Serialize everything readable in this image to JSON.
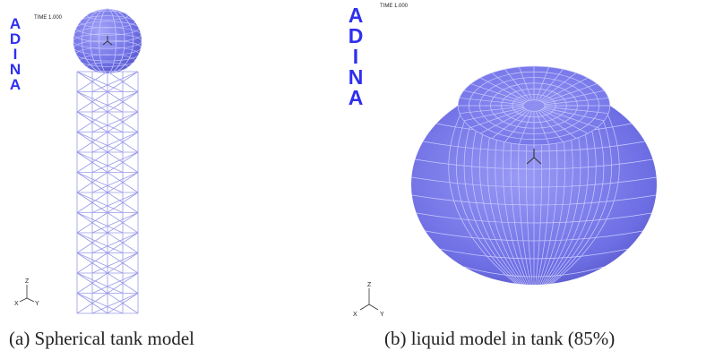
{
  "panel_a": {
    "logo_letters": [
      "A",
      "D",
      "I",
      "N",
      "A"
    ],
    "time_label": "TIME 1.000",
    "axis_labels": {
      "z": "Z",
      "x": "X",
      "y": "Y"
    },
    "caption": "(a) Spherical tank model"
  },
  "panel_b": {
    "logo_letters": [
      "A",
      "D",
      "I",
      "N",
      "A"
    ],
    "time_label": "TIME 1.000",
    "axis_labels": {
      "z": "Z",
      "x": "X",
      "y": "Y"
    },
    "caption": "(b) liquid model in tank (85%)"
  },
  "colors": {
    "logo": "#2f2ff0",
    "mesh_fill": "#7b7bef",
    "mesh_line": "#c9c9ff",
    "truss": "#9a9ae8"
  }
}
